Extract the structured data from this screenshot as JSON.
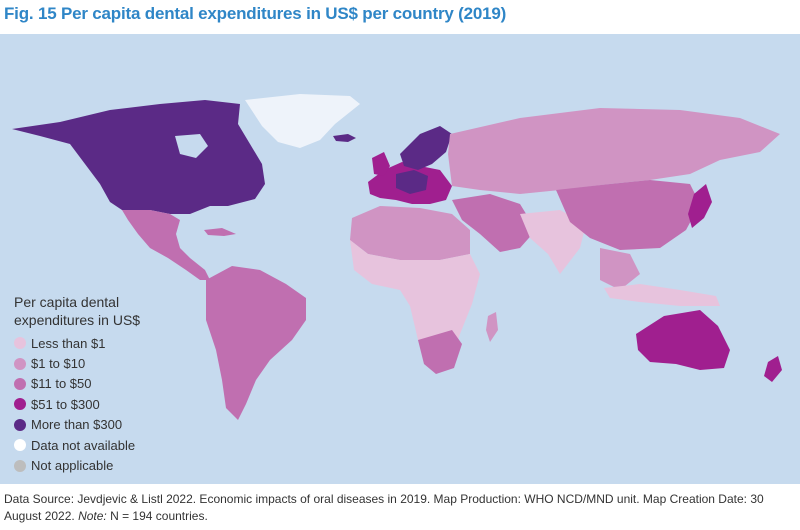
{
  "title": "Fig. 15  Per capita dental expenditures in US$ per country (2019)",
  "legend": {
    "title": "Per capita dental expenditures in US$",
    "items": [
      {
        "label": "Less than $1",
        "color": "#e7c3dd"
      },
      {
        "label": "$1 to $10",
        "color": "#d094c3"
      },
      {
        "label": "$11 to $50",
        "color": "#c06fb0"
      },
      {
        "label": "$51 to $300",
        "color": "#a01f8f"
      },
      {
        "label": "More than $300",
        "color": "#5b2a86"
      },
      {
        "label": "Data not available",
        "color": "#ffffff"
      },
      {
        "label": "Not applicable",
        "color": "#bdbdbd"
      }
    ]
  },
  "colors": {
    "ocean": "#c6daee",
    "title": "#2f86c7"
  },
  "footer": {
    "source_text": "Data Source: Jevdjevic & Listl 2022. Economic impacts of oral diseases in 2019.  Map Production: WHO NCD/MND unit. Map Creation Date: 30 August 2022.  ",
    "note_label": "Note:",
    "note_text": " N = 194 countries."
  }
}
